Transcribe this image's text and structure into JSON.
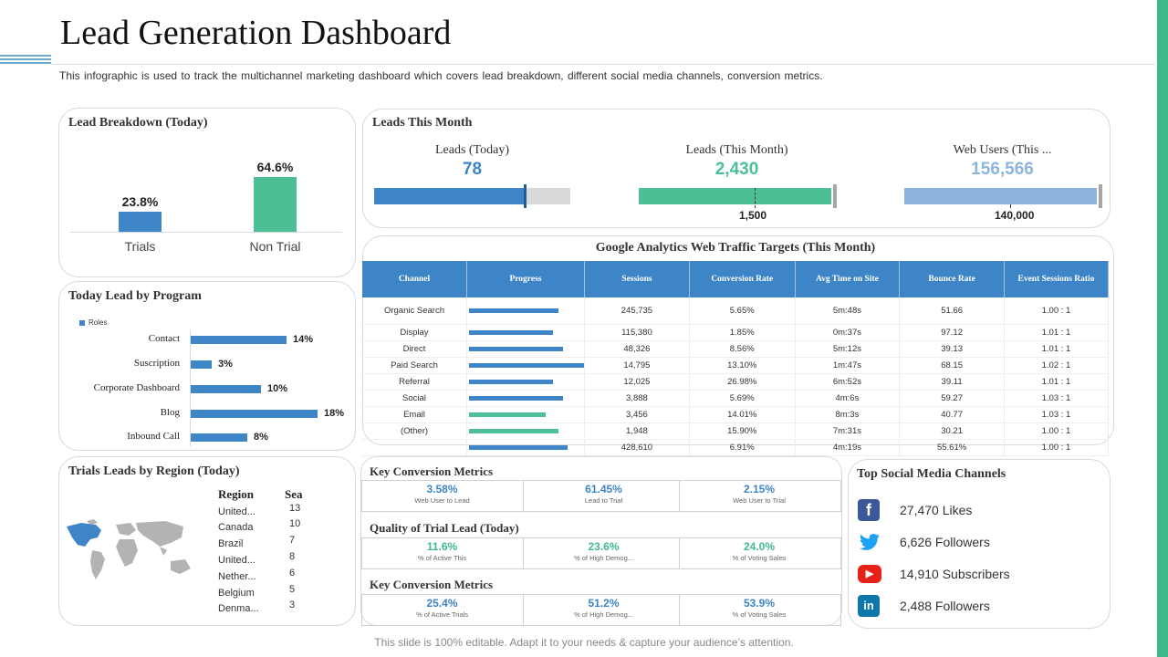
{
  "header": {
    "title": "Lead Generation Dashboard",
    "subtitle": "This infographic is used to track the multichannel marketing dashboard which covers lead breakdown, different social media channels, conversion metrics."
  },
  "colors": {
    "blue": "#3d85c6",
    "green": "#4dbf94",
    "lightblue": "#8db4dc",
    "accent": "#3fb98a"
  },
  "lead_breakdown": {
    "title": "Lead Breakdown (Today)",
    "chart_data": {
      "type": "bar",
      "categories": [
        "Trials",
        "Non Trial"
      ],
      "values": [
        23.8,
        64.6
      ],
      "value_labels": [
        "23.8%",
        "64.6%"
      ],
      "ylim": [
        0,
        70
      ]
    }
  },
  "leads_month": {
    "title": "Leads This Month",
    "kpis": [
      {
        "caption": "Leads (Today)",
        "value": "78",
        "fill": 0.77,
        "target_label": ""
      },
      {
        "caption": "Leads (This Month)",
        "value": "2,430",
        "fill": 0.98,
        "target_label": "1,500",
        "target_fraction": 0.59
      },
      {
        "caption": "Web Users (This ...",
        "value": "156,566",
        "fill": 0.98,
        "target_label": "140,000",
        "target_fraction": 0.54
      }
    ]
  },
  "program": {
    "title": "Today Lead by Program",
    "legend": "Roles",
    "chart_data": {
      "type": "bar",
      "categories": [
        "Contact",
        "Suscription",
        "Corporate Dashboard",
        "Blog",
        "Inbound Call"
      ],
      "values": [
        14,
        3,
        10,
        18,
        8
      ],
      "value_labels": [
        "14%",
        "3%",
        "10%",
        "18%",
        "8%"
      ],
      "xlim": [
        0,
        18
      ]
    }
  },
  "traffic": {
    "title": "Google Analytics Web Traffic Targets (This Month)",
    "columns": [
      "Channel",
      "Progress",
      "Sessions",
      "Conversion  Rate",
      "Avg Time on Site",
      "Bounce  Rate",
      "Event Sessions Ratio"
    ],
    "rows": [
      {
        "channel": "Organic Search",
        "progress": 0.78,
        "color": "blue",
        "sessions": "245,735",
        "conv": "5.65%",
        "time": "5m:48s",
        "bounce": "51.66",
        "ratio": "1.00 : 1"
      },
      {
        "channel": "Display",
        "progress": 0.73,
        "color": "blue",
        "sessions": "115,380",
        "conv": "1.85%",
        "time": "0m:37s",
        "bounce": "97.12",
        "ratio": "1.01 : 1"
      },
      {
        "channel": "Direct",
        "progress": 0.82,
        "color": "blue",
        "sessions": "48,326",
        "conv": "8.56%",
        "time": "5m:12s",
        "bounce": "39.13",
        "ratio": "1.01 : 1"
      },
      {
        "channel": "Paid Search",
        "progress": 1.0,
        "color": "blue",
        "sessions": "14,795",
        "conv": "13.10%",
        "time": "1m:47s",
        "bounce": "68.15",
        "ratio": "1.02 : 1"
      },
      {
        "channel": "Referral",
        "progress": 0.73,
        "color": "blue",
        "sessions": "12,025",
        "conv": "26.98%",
        "time": "6m:52s",
        "bounce": "39.11",
        "ratio": "1.01 : 1"
      },
      {
        "channel": "Social",
        "progress": 0.82,
        "color": "blue",
        "sessions": "3,888",
        "conv": "5.69%",
        "time": "4m:6s",
        "bounce": "59.27",
        "ratio": "1.03 : 1"
      },
      {
        "channel": "Email",
        "progress": 0.67,
        "color": "green",
        "sessions": "3,456",
        "conv": "14.01%",
        "time": "8m:3s",
        "bounce": "40.77",
        "ratio": "1.03 : 1"
      },
      {
        "channel": "(Other)",
        "progress": 0.78,
        "color": "green",
        "sessions": "1,948",
        "conv": "15.90%",
        "time": "7m:31s",
        "bounce": "30.21",
        "ratio": "1.00 : 1"
      },
      {
        "channel": "",
        "progress": 0.86,
        "color": "blue",
        "sessions": "428,610",
        "conv": "6.91%",
        "time": "4m:19s",
        "bounce": "55.61%",
        "ratio": "1.00 : 1"
      }
    ]
  },
  "region": {
    "title": "Trials Leads by Region (Today)",
    "col_region": "Region",
    "col_sea": "Sea",
    "rows": [
      {
        "region": "United...",
        "sea": "13"
      },
      {
        "region": "Canada",
        "sea": "10"
      },
      {
        "region": "Brazil",
        "sea": "7"
      },
      {
        "region": "United...",
        "sea": "8"
      },
      {
        "region": "Nether...",
        "sea": "6"
      },
      {
        "region": "Belgium",
        "sea": "5"
      },
      {
        "region": "Denma...",
        "sea": "3"
      }
    ]
  },
  "metrics": {
    "sections": [
      {
        "title": "Key Conversion  Metrics",
        "items": [
          {
            "value": "3.58%",
            "label": "Web User to Lead",
            "color": "blue"
          },
          {
            "value": "61.45%",
            "label": "Lead to Trial",
            "color": "blue"
          },
          {
            "value": "2.15%",
            "label": "Web User to Trial",
            "color": "blue"
          }
        ]
      },
      {
        "title": "Quality of Trial Lead (Today)",
        "items": [
          {
            "value": "11.6%",
            "label": "% of Active This",
            "color": "green"
          },
          {
            "value": "23.6%",
            "label": "% of High Demog...",
            "color": "green"
          },
          {
            "value": "24.0%",
            "label": "% of Voting Sales",
            "color": "green"
          }
        ]
      },
      {
        "title": "Key Conversion  Metrics",
        "items": [
          {
            "value": "25.4%",
            "label": "% of Active Trials",
            "color": "blue"
          },
          {
            "value": "51.2%",
            "label": "% of High Demog...",
            "color": "blue"
          },
          {
            "value": "53.9%",
            "label": "% of Voting Sales",
            "color": "blue"
          }
        ]
      }
    ]
  },
  "social": {
    "title": "Top Social Media Channels",
    "items": [
      {
        "icon": "facebook-icon",
        "text": "27,470 Likes"
      },
      {
        "icon": "twitter-icon",
        "text": "6,626 Followers"
      },
      {
        "icon": "youtube-icon",
        "text": "14,910 Subscribers"
      },
      {
        "icon": "linkedin-icon",
        "text": "2,488 Followers"
      }
    ]
  },
  "footer": "This slide is 100% editable. Adapt it to your needs & capture your audience’s attention."
}
